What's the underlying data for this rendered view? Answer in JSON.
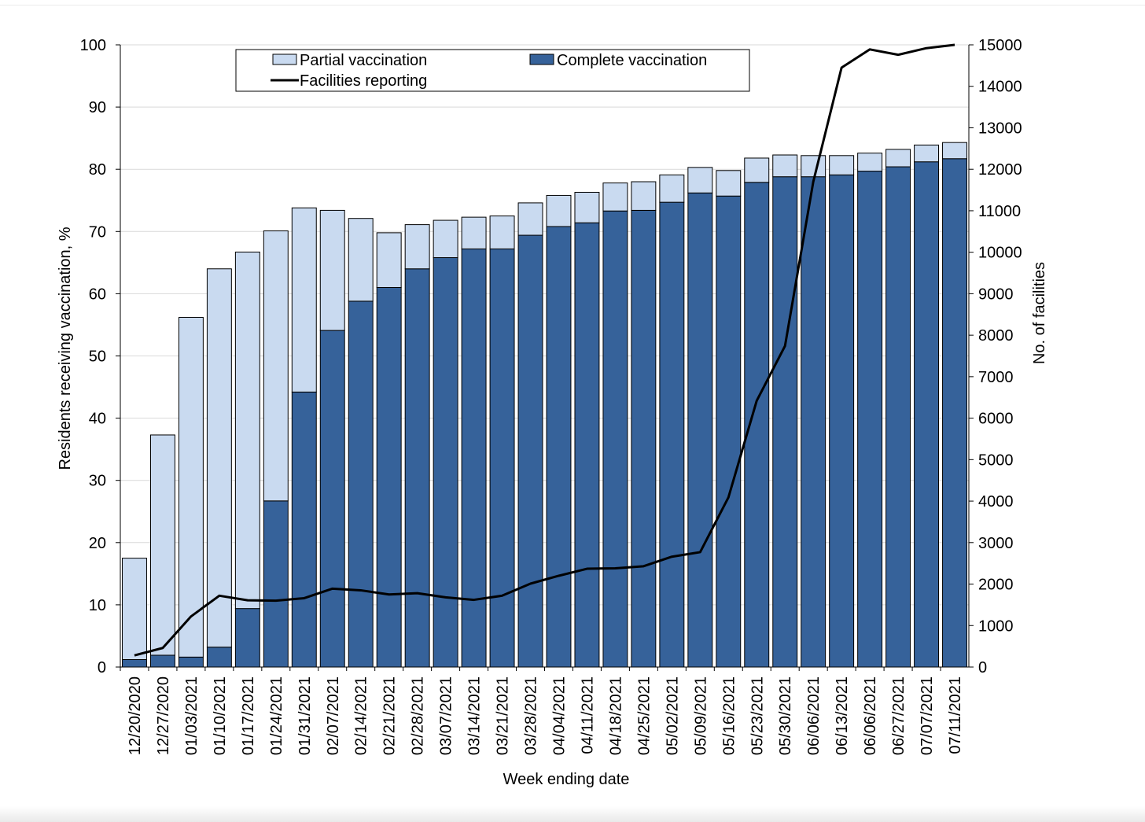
{
  "chart_data": {
    "type": "bar",
    "stacked": true,
    "title": "",
    "xlabel": "Week ending date",
    "ylabel": "Residents receiving vaccination, %",
    "y2label": "No. of facilities",
    "ylim": [
      0,
      100
    ],
    "y2lim": [
      0,
      15000
    ],
    "yticks": [
      0,
      10,
      20,
      30,
      40,
      50,
      60,
      70,
      80,
      90,
      100
    ],
    "y2ticks": [
      0,
      1000,
      2000,
      3000,
      4000,
      5000,
      6000,
      7000,
      8000,
      9000,
      10000,
      11000,
      12000,
      13000,
      14000,
      15000
    ],
    "grid": true,
    "legend_position": "top",
    "categories": [
      "12/20/2020",
      "12/27/2020",
      "01/03/2021",
      "01/10/2021",
      "01/17/2021",
      "01/24/2021",
      "01/31/2021",
      "02/07/2021",
      "02/14/2021",
      "02/21/2021",
      "02/28/2021",
      "03/07/2021",
      "03/14/2021",
      "03/21/2021",
      "03/28/2021",
      "04/04/2021",
      "04/11/2021",
      "04/18/2021",
      "04/25/2021",
      "05/02/2021",
      "05/09/2021",
      "05/16/2021",
      "05/23/2021",
      "05/30/2021",
      "06/06/2021",
      "06/13/2021",
      "06/06/2021",
      "06/27/2021",
      "07/07/2021",
      "07/11/2021"
    ],
    "series": [
      {
        "name": "Complete vaccination",
        "kind": "bar-bottom",
        "color": "#36629a",
        "values": [
          1.2,
          1.9,
          1.6,
          3.2,
          9.4,
          26.7,
          44.2,
          54.1,
          58.8,
          61.0,
          64.0,
          65.8,
          67.2,
          67.2,
          69.4,
          70.8,
          71.4,
          73.3,
          73.4,
          74.7,
          76.2,
          75.7,
          77.9,
          78.8,
          78.8,
          79.1,
          79.7,
          80.4,
          81.2,
          81.7
        ]
      },
      {
        "name": "Partial vaccination",
        "kind": "bar-top",
        "color": "#c9daf0",
        "values": [
          16.3,
          35.4,
          54.6,
          60.8,
          57.3,
          43.4,
          29.6,
          19.3,
          13.3,
          8.8,
          7.1,
          6.0,
          5.1,
          5.3,
          5.2,
          5.0,
          4.9,
          4.5,
          4.6,
          4.4,
          4.1,
          4.1,
          3.9,
          3.5,
          3.4,
          3.1,
          2.9,
          2.8,
          2.7,
          2.6
        ]
      },
      {
        "name": "Facilities reporting",
        "kind": "line",
        "axis": "right",
        "color": "#000000",
        "values": [
          280,
          460,
          1220,
          1720,
          1610,
          1600,
          1660,
          1890,
          1850,
          1750,
          1780,
          1680,
          1620,
          1720,
          2010,
          2200,
          2370,
          2380,
          2430,
          2660,
          2770,
          4090,
          6420,
          7740,
          11700,
          14450,
          14890,
          14760,
          14920,
          15000
        ]
      }
    ],
    "legend": {
      "partial": "Partial vaccination",
      "complete": "Complete vaccination",
      "facilities": "Facilities reporting"
    }
  }
}
